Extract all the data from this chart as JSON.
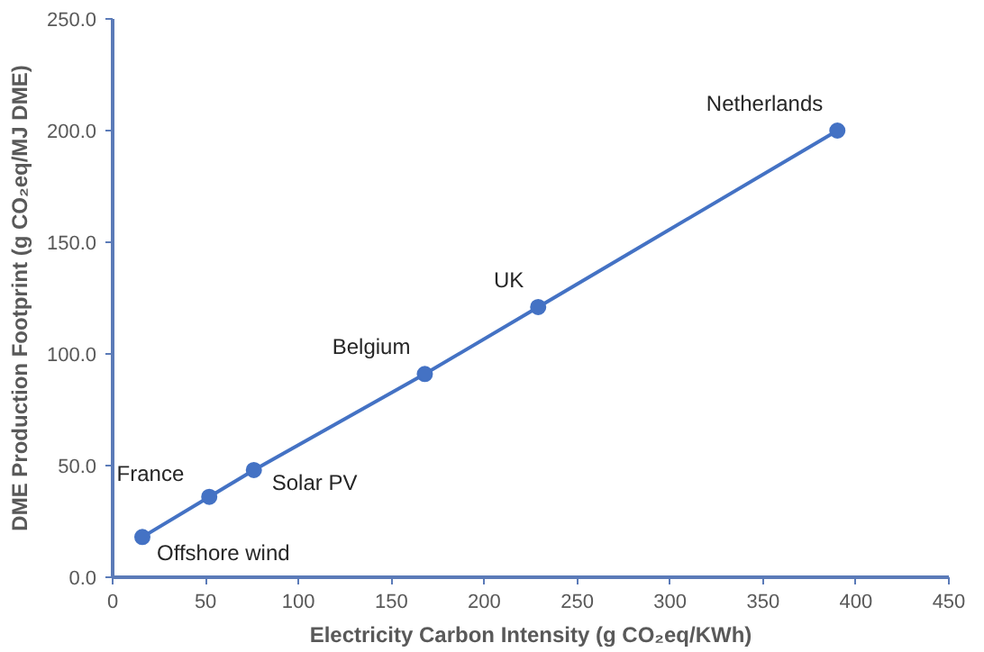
{
  "chart_data": {
    "type": "line",
    "xlabel": "Electricity Carbon Intensity (g CO₂eq/KWh)",
    "ylabel": "DME Production Footprint (g CO₂eq/MJ DME)",
    "x": [
      16,
      52,
      76,
      168,
      229,
      390
    ],
    "series": [
      {
        "color": "#4472c4",
        "values": [
          18,
          36,
          48,
          91,
          121,
          200
        ]
      }
    ],
    "marker": "circle",
    "grid": false,
    "xlim": [
      0,
      450
    ],
    "xticks": [
      0,
      50,
      100,
      150,
      200,
      250,
      300,
      350,
      400,
      450
    ],
    "ylim": [
      0,
      250
    ],
    "yticks": [
      {
        "value": 0,
        "label": "0.0"
      },
      {
        "value": 50,
        "label": "50.0"
      },
      {
        "value": 100,
        "label": "100.0"
      },
      {
        "value": 150,
        "label": "150.0"
      },
      {
        "value": 200,
        "label": "200.0"
      },
      {
        "value": 250,
        "label": "250.0"
      }
    ],
    "annotations": [
      {
        "text": "Offshore wind",
        "x": 16,
        "y": 18
      },
      {
        "text": "France",
        "x": 52,
        "y": 36
      },
      {
        "text": "Solar PV",
        "x": 76,
        "y": 48
      },
      {
        "text": "Belgium",
        "x": 168,
        "y": 91
      },
      {
        "text": "UK",
        "x": 229,
        "y": 121
      },
      {
        "text": "Netherlands",
        "x": 390,
        "y": 200
      }
    ]
  }
}
